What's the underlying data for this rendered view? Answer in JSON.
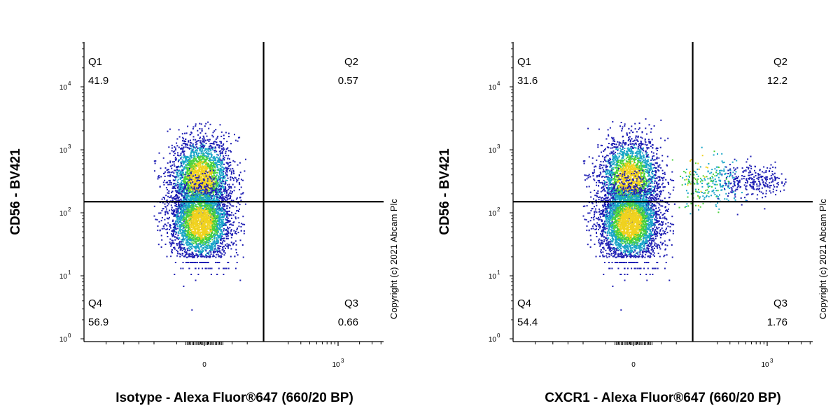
{
  "chart_data": [
    {
      "type": "scatter",
      "plot_kind": "flow-cytometry density dot plot",
      "xlabel": "Isotype - Alexa Fluor®647 (660/20 BP)",
      "ylabel": "CD56 - BV421",
      "x_scale": "biexponential",
      "y_scale": "log",
      "x_ticks": [
        {
          "value": 0,
          "label": "0"
        },
        {
          "value": 1000,
          "label": "10",
          "sup": "3"
        }
      ],
      "y_ticks": [
        {
          "value": 1,
          "label": "10",
          "sup": "0"
        },
        {
          "value": 10,
          "label": "10",
          "sup": "1"
        },
        {
          "value": 100,
          "label": "10",
          "sup": "2"
        },
        {
          "value": 1000,
          "label": "10",
          "sup": "3"
        },
        {
          "value": 10000,
          "label": "10",
          "sup": "4"
        }
      ],
      "gate": {
        "x": 90,
        "y": 150
      },
      "quadrants": [
        {
          "id": "Q1",
          "label": "Q1",
          "value": "41.9",
          "position": "top-left"
        },
        {
          "id": "Q2",
          "label": "Q2",
          "value": "0.57",
          "position": "top-right"
        },
        {
          "id": "Q3",
          "label": "Q3",
          "value": "0.66",
          "position": "bottom-right"
        },
        {
          "id": "Q4",
          "label": "Q4",
          "value": "56.9",
          "position": "bottom-left"
        }
      ],
      "population": {
        "x_center": -5,
        "x_spread": 0.55,
        "upper": {
          "y_center_log": 2.55,
          "y_spread_log": 0.32
        },
        "lower": {
          "y_center_log": 1.85,
          "y_spread_log": 0.3
        },
        "positive": null
      },
      "copyright": "Copyright (c) 2021 Abcam Plc"
    },
    {
      "type": "scatter",
      "plot_kind": "flow-cytometry density dot plot",
      "xlabel": "CXCR1 - Alexa Fluor®647 (660/20 BP)",
      "ylabel": "CD56 - BV421",
      "x_scale": "biexponential",
      "y_scale": "log",
      "x_ticks": [
        {
          "value": 0,
          "label": "0"
        },
        {
          "value": 1000,
          "label": "10",
          "sup": "3"
        }
      ],
      "y_ticks": [
        {
          "value": 1,
          "label": "10",
          "sup": "0"
        },
        {
          "value": 10,
          "label": "10",
          "sup": "1"
        },
        {
          "value": 100,
          "label": "10",
          "sup": "2"
        },
        {
          "value": 1000,
          "label": "10",
          "sup": "3"
        },
        {
          "value": 10000,
          "label": "10",
          "sup": "4"
        }
      ],
      "gate": {
        "x": 90,
        "y": 150
      },
      "quadrants": [
        {
          "id": "Q1",
          "label": "Q1",
          "value": "31.6",
          "position": "top-left"
        },
        {
          "id": "Q2",
          "label": "Q2",
          "value": "12.2",
          "position": "top-right"
        },
        {
          "id": "Q3",
          "label": "Q3",
          "value": "1.76",
          "position": "bottom-right"
        },
        {
          "id": "Q4",
          "label": "Q4",
          "value": "54.4",
          "position": "bottom-left"
        }
      ],
      "population": {
        "x_center": -5,
        "x_spread": 0.55,
        "upper": {
          "y_center_log": 2.55,
          "y_spread_log": 0.32
        },
        "lower": {
          "y_center_log": 1.85,
          "y_spread_log": 0.3
        },
        "positive": {
          "x_center_log": 2.45,
          "y_center_log": 2.5,
          "y_spread_log": 0.22
        }
      },
      "copyright": "Copyright (c) 2021 Abcam Plc"
    }
  ],
  "colors": {
    "density_low": "#1f1fb4",
    "density_mid": "#1aa6c8",
    "density_high": "#4ad23c",
    "density_peak": "#f0d21e",
    "gate_line": "#000000",
    "axis": "#000000"
  }
}
